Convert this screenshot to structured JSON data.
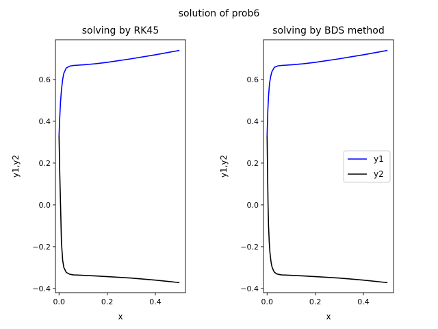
{
  "suptitle": "solution of prob6",
  "chart_data": [
    {
      "type": "line",
      "title": "solving by RK45",
      "xlabel": "x",
      "ylabel": "y1,y2",
      "xlim": [
        -0.015,
        0.525
      ],
      "ylim": [
        -0.42,
        0.79
      ],
      "xticks": [
        0.0,
        0.2,
        0.4
      ],
      "xtick_labels": [
        "0.0",
        "0.2",
        "0.4"
      ],
      "yticks": [
        -0.4,
        -0.2,
        0.0,
        0.2,
        0.4,
        0.6
      ],
      "ytick_labels": [
        "−0.4",
        "−0.2",
        "0.0",
        "0.2",
        "0.4",
        "0.6"
      ],
      "grid": false,
      "legend": null,
      "series": [
        {
          "name": "y1",
          "color": "#0000ff",
          "x": [
            0.0,
            0.003,
            0.006,
            0.01,
            0.015,
            0.02,
            0.03,
            0.045,
            0.06,
            0.1,
            0.15,
            0.2,
            0.3,
            0.4,
            0.5
          ],
          "y": [
            0.33,
            0.42,
            0.49,
            0.55,
            0.6,
            0.63,
            0.655,
            0.664,
            0.667,
            0.67,
            0.675,
            0.682,
            0.699,
            0.718,
            0.739
          ]
        },
        {
          "name": "y2",
          "color": "#000000",
          "x": [
            0.0,
            0.003,
            0.006,
            0.01,
            0.015,
            0.02,
            0.03,
            0.045,
            0.06,
            0.1,
            0.15,
            0.2,
            0.3,
            0.4,
            0.5
          ],
          "y": [
            0.33,
            0.15,
            0.01,
            -0.18,
            -0.265,
            -0.3,
            -0.323,
            -0.332,
            -0.335,
            -0.337,
            -0.34,
            -0.343,
            -0.35,
            -0.36,
            -0.372
          ]
        }
      ]
    },
    {
      "type": "line",
      "title": "solving by BDS method",
      "xlabel": "x",
      "ylabel": "y1,y2",
      "xlim": [
        -0.015,
        0.525
      ],
      "ylim": [
        -0.42,
        0.79
      ],
      "xticks": [
        0.0,
        0.2,
        0.4
      ],
      "xtick_labels": [
        "0.0",
        "0.2",
        "0.4"
      ],
      "yticks": [
        -0.4,
        -0.2,
        0.0,
        0.2,
        0.4,
        0.6
      ],
      "ytick_labels": [
        "−0.4",
        "−0.2",
        "0.0",
        "0.2",
        "0.4",
        "0.6"
      ],
      "grid": false,
      "legend": "center-right",
      "series": [
        {
          "name": "y1",
          "color": "#0000ff",
          "x": [
            0.0,
            0.003,
            0.006,
            0.01,
            0.015,
            0.02,
            0.03,
            0.045,
            0.06,
            0.1,
            0.15,
            0.2,
            0.3,
            0.4,
            0.5
          ],
          "y": [
            0.33,
            0.45,
            0.52,
            0.58,
            0.615,
            0.637,
            0.658,
            0.665,
            0.667,
            0.67,
            0.675,
            0.682,
            0.699,
            0.718,
            0.739
          ]
        },
        {
          "name": "y2",
          "color": "#000000",
          "x": [
            0.0,
            0.002,
            0.004,
            0.006,
            0.009,
            0.012,
            0.016,
            0.02,
            0.025,
            0.03,
            0.04,
            0.05,
            0.06,
            0.1,
            0.15,
            0.2,
            0.3,
            0.4,
            0.5
          ],
          "y": [
            0.33,
            0.15,
            0.0,
            -0.1,
            -0.18,
            -0.23,
            -0.27,
            -0.295,
            -0.31,
            -0.322,
            -0.33,
            -0.333,
            -0.335,
            -0.337,
            -0.34,
            -0.343,
            -0.35,
            -0.36,
            -0.372
          ]
        }
      ]
    }
  ]
}
